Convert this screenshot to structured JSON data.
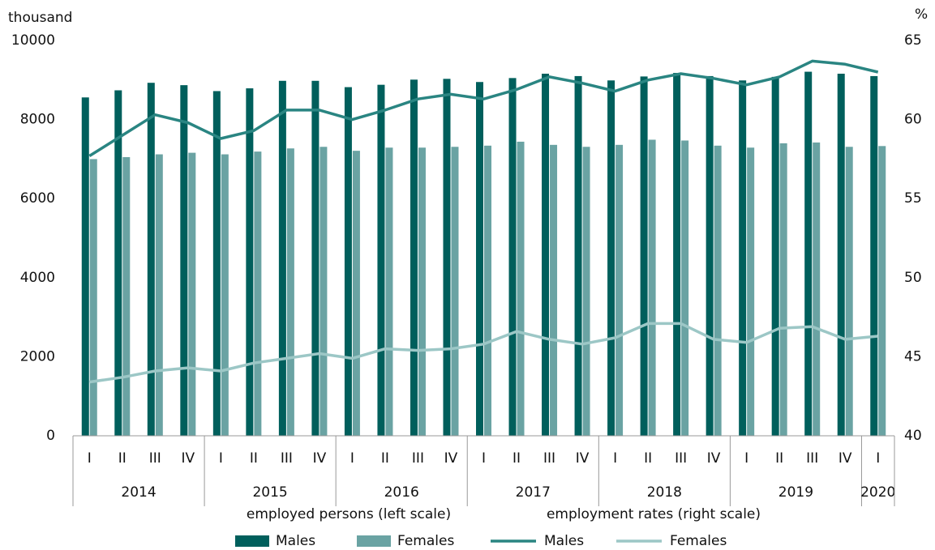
{
  "chart_data": {
    "type": "combo",
    "y_label": "thousand",
    "y2_label": "%",
    "categories": [
      "I",
      "II",
      "III",
      "IV",
      "I",
      "II",
      "III",
      "IV",
      "I",
      "II",
      "III",
      "IV",
      "I",
      "II",
      "III",
      "IV",
      "I",
      "II",
      "III",
      "IV",
      "I",
      "II",
      "III",
      "IV",
      "I"
    ],
    "years": [
      {
        "label": "2014",
        "size": 4
      },
      {
        "label": "2015",
        "size": 4
      },
      {
        "label": "2016",
        "size": 4
      },
      {
        "label": "2017",
        "size": 4
      },
      {
        "label": "2018",
        "size": 4
      },
      {
        "label": "2019",
        "size": 4
      },
      {
        "label": "2020",
        "size": 1
      }
    ],
    "annotations": [
      "employed persons (left scale)",
      "employment rates (right scale)"
    ],
    "ylim": [
      0,
      10000
    ],
    "yticks": [
      0,
      2000,
      4000,
      6000,
      8000,
      10000
    ],
    "y2lim": [
      40,
      65
    ],
    "y2ticks": [
      40,
      45,
      50,
      55,
      60,
      65
    ],
    "series": [
      {
        "name": "Males",
        "type": "bar",
        "color": "#005f5c",
        "values": [
          8560,
          8740,
          8930,
          8870,
          8720,
          8790,
          8980,
          8980,
          8820,
          8880,
          9010,
          9030,
          8950,
          9050,
          9160,
          9100,
          8990,
          9090,
          9180,
          9100,
          8990,
          9080,
          9210,
          9160,
          9100
        ]
      },
      {
        "name": "Females",
        "type": "bar",
        "color": "#6aa3a3",
        "values": [
          7000,
          7050,
          7120,
          7160,
          7120,
          7190,
          7270,
          7310,
          7210,
          7290,
          7290,
          7310,
          7340,
          7440,
          7360,
          7310,
          7360,
          7490,
          7470,
          7340,
          7290,
          7400,
          7420,
          7310,
          7330
        ]
      },
      {
        "name": "Males",
        "type": "line",
        "axis": "y2",
        "color": "#2a8582",
        "values": [
          57.7,
          59.0,
          60.3,
          59.8,
          58.8,
          59.3,
          60.6,
          60.6,
          60.0,
          60.6,
          61.3,
          61.6,
          61.3,
          61.9,
          62.7,
          62.3,
          61.8,
          62.5,
          62.9,
          62.6,
          62.2,
          62.7,
          63.7,
          63.5,
          63.0
        ]
      },
      {
        "name": "Females",
        "type": "line",
        "axis": "y2",
        "color": "#9cc7c6",
        "values": [
          43.4,
          43.7,
          44.1,
          44.3,
          44.1,
          44.6,
          44.9,
          45.2,
          44.9,
          45.5,
          45.4,
          45.5,
          45.8,
          46.6,
          46.1,
          45.8,
          46.2,
          47.1,
          47.1,
          46.1,
          45.9,
          46.8,
          46.9,
          46.1,
          46.3
        ]
      }
    ]
  }
}
